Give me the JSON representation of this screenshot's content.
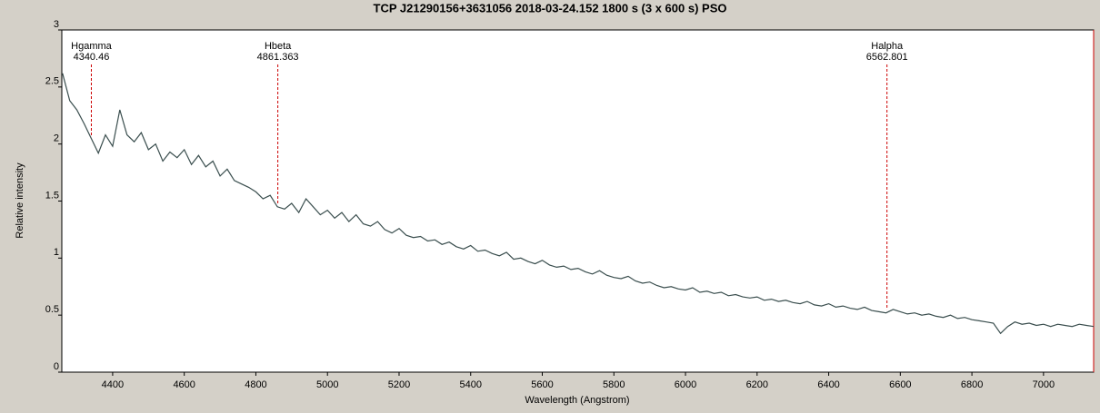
{
  "chart_data": {
    "type": "line",
    "title": "TCP J21290156+3631056   2018-03-24.152   1800 s (3 x 600 s)   PSO",
    "x_label": "Wavelength (Angstrom)",
    "y_label": "Relative intensity",
    "xlim": [
      4258,
      7140
    ],
    "ylim": [
      0,
      3
    ],
    "xticks": [
      4400,
      4600,
      4800,
      5000,
      5200,
      5400,
      5600,
      5800,
      6000,
      6200,
      6400,
      6600,
      6800,
      7000
    ],
    "yticks": [
      0,
      0.5,
      1,
      1.5,
      2,
      2.5,
      3
    ],
    "series": [
      {
        "color": "#3a4e4e",
        "x": [
          4260,
          4280,
          4300,
          4320,
          4340,
          4360,
          4380,
          4400,
          4420,
          4440,
          4460,
          4480,
          4500,
          4520,
          4540,
          4560,
          4580,
          4600,
          4620,
          4640,
          4660,
          4680,
          4700,
          4720,
          4740,
          4760,
          4780,
          4800,
          4820,
          4840,
          4860,
          4880,
          4900,
          4920,
          4940,
          4960,
          4980,
          5000,
          5020,
          5040,
          5060,
          5080,
          5100,
          5120,
          5140,
          5160,
          5180,
          5200,
          5220,
          5240,
          5260,
          5280,
          5300,
          5320,
          5340,
          5360,
          5380,
          5400,
          5420,
          5440,
          5460,
          5480,
          5500,
          5520,
          5540,
          5560,
          5580,
          5600,
          5620,
          5640,
          5660,
          5680,
          5700,
          5720,
          5740,
          5760,
          5780,
          5800,
          5820,
          5840,
          5860,
          5880,
          5900,
          5920,
          5940,
          5960,
          5980,
          6000,
          6020,
          6040,
          6060,
          6080,
          6100,
          6120,
          6140,
          6160,
          6180,
          6200,
          6220,
          6240,
          6260,
          6280,
          6300,
          6320,
          6340,
          6360,
          6380,
          6400,
          6420,
          6440,
          6460,
          6480,
          6500,
          6520,
          6540,
          6560,
          6580,
          6600,
          6620,
          6640,
          6660,
          6680,
          6700,
          6720,
          6740,
          6760,
          6780,
          6800,
          6820,
          6840,
          6860,
          6880,
          6900,
          6920,
          6940,
          6960,
          6980,
          7000,
          7020,
          7040,
          7060,
          7080,
          7100,
          7120,
          7140
        ],
        "values": [
          2.62,
          2.38,
          2.3,
          2.18,
          2.05,
          1.92,
          2.08,
          1.98,
          2.3,
          2.08,
          2.02,
          2.1,
          1.95,
          2.0,
          1.85,
          1.93,
          1.88,
          1.95,
          1.82,
          1.9,
          1.8,
          1.85,
          1.72,
          1.78,
          1.68,
          1.65,
          1.62,
          1.58,
          1.52,
          1.55,
          1.45,
          1.43,
          1.48,
          1.4,
          1.52,
          1.45,
          1.38,
          1.42,
          1.35,
          1.4,
          1.32,
          1.38,
          1.3,
          1.28,
          1.32,
          1.25,
          1.22,
          1.26,
          1.2,
          1.18,
          1.19,
          1.15,
          1.16,
          1.12,
          1.14,
          1.1,
          1.08,
          1.11,
          1.06,
          1.07,
          1.04,
          1.02,
          1.05,
          0.99,
          1.0,
          0.97,
          0.95,
          0.98,
          0.94,
          0.92,
          0.93,
          0.9,
          0.91,
          0.88,
          0.86,
          0.89,
          0.85,
          0.83,
          0.82,
          0.84,
          0.8,
          0.78,
          0.79,
          0.76,
          0.74,
          0.75,
          0.73,
          0.72,
          0.74,
          0.7,
          0.71,
          0.69,
          0.7,
          0.67,
          0.68,
          0.66,
          0.65,
          0.66,
          0.63,
          0.64,
          0.62,
          0.63,
          0.61,
          0.6,
          0.62,
          0.59,
          0.58,
          0.6,
          0.57,
          0.58,
          0.56,
          0.55,
          0.57,
          0.54,
          0.53,
          0.52,
          0.55,
          0.53,
          0.51,
          0.52,
          0.5,
          0.51,
          0.49,
          0.48,
          0.5,
          0.47,
          0.48,
          0.46,
          0.45,
          0.44,
          0.43,
          0.34,
          0.4,
          0.44,
          0.42,
          0.43,
          0.41,
          0.42,
          0.4,
          0.42,
          0.41,
          0.4,
          0.42,
          0.41,
          0.4
        ]
      }
    ],
    "annotations": [
      {
        "name": "Hgamma",
        "x": 4340.46
      },
      {
        "name": "Hbeta",
        "x": 4861.363
      },
      {
        "name": "Halpha",
        "x": 6562.801
      }
    ],
    "annotation_color": "#cc0000"
  }
}
